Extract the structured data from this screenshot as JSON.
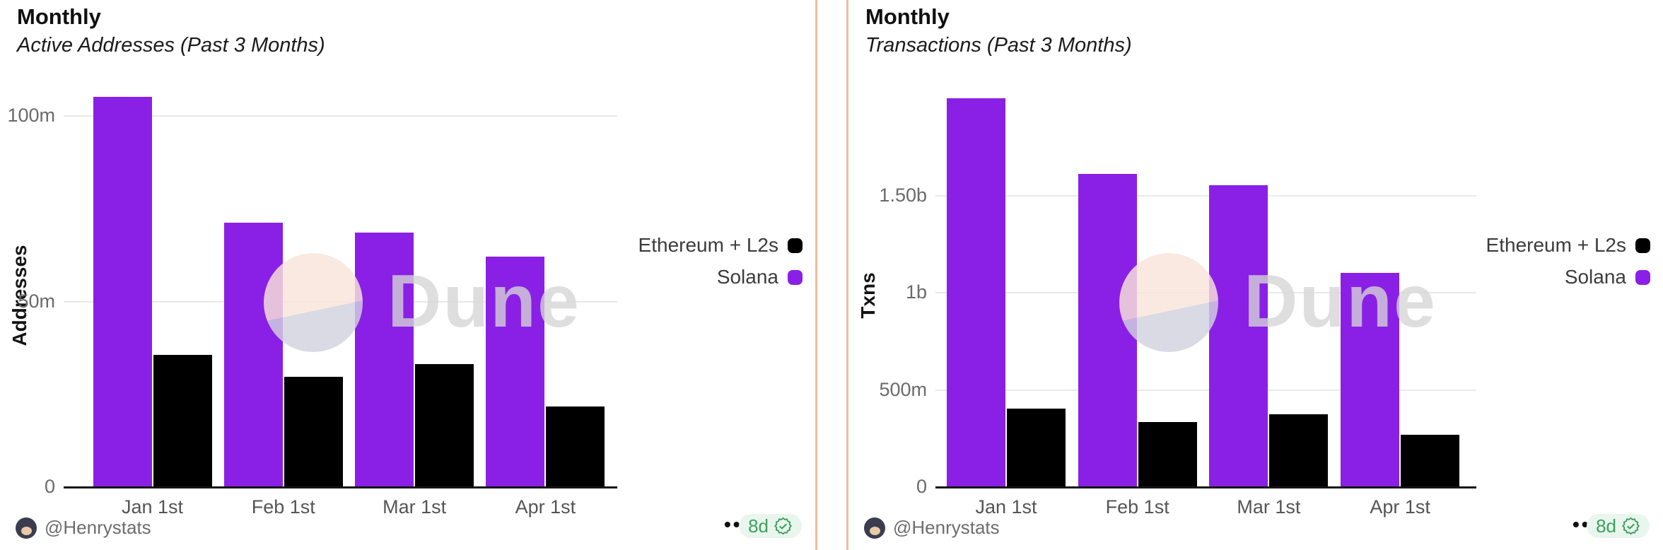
{
  "watermark": {
    "text": "Dune"
  },
  "colors": {
    "solana": "#8a20e6",
    "ethereum": "#000000",
    "divider": "#f3b9a3",
    "gridline": "#e9e9e9",
    "badge_bg": "#e9f6ee",
    "badge_green": "#3ea15c"
  },
  "footer_icons": {
    "more_options": "•••"
  },
  "cards": [
    {
      "author": "@Henrystats",
      "badge_label": "8d"
    },
    {
      "author": "@Henrystats",
      "badge_label": "8d"
    }
  ],
  "chart_data": [
    {
      "type": "bar",
      "title": "Monthly",
      "subtitle": "Active Addresses (Past 3 Months)",
      "ylabel": "Addresses",
      "xlabel": "",
      "unit": "millions",
      "categories": [
        "Jan 1st",
        "Feb 1st",
        "Mar 1st",
        "Apr 1st"
      ],
      "series": [
        {
          "name": "Solana",
          "color": "solana",
          "values": [
            105,
            71,
            68.5,
            62
          ]
        },
        {
          "name": "Ethereum + L2s",
          "color": "ethereum",
          "values": [
            35.5,
            29.5,
            33,
            21.5
          ]
        }
      ],
      "yticks": [
        {
          "v": 0,
          "label": "0"
        },
        {
          "v": 50,
          "label": "50m"
        },
        {
          "v": 100,
          "label": "100m"
        }
      ],
      "ylim": [
        0,
        113
      ],
      "grid": "horizontal",
      "legend_position": "right"
    },
    {
      "type": "bar",
      "title": "Monthly",
      "subtitle": "Transactions (Past 3 Months)",
      "ylabel": "Txns",
      "xlabel": "",
      "unit": "millions",
      "categories": [
        "Jan 1st",
        "Feb 1st",
        "Mar 1st",
        "Apr 1st"
      ],
      "series": [
        {
          "name": "Solana",
          "color": "solana",
          "values": [
            2000,
            1610,
            1550,
            1100
          ]
        },
        {
          "name": "Ethereum + L2s",
          "color": "ethereum",
          "values": [
            400,
            330,
            370,
            265
          ]
        }
      ],
      "yticks": [
        {
          "v": 0,
          "label": "0"
        },
        {
          "v": 500,
          "label": "500m"
        },
        {
          "v": 1000,
          "label": "1b"
        },
        {
          "v": 1500,
          "label": "1.50b"
        }
      ],
      "ylim": [
        0,
        2160
      ],
      "grid": "horizontal",
      "legend_position": "right"
    }
  ]
}
